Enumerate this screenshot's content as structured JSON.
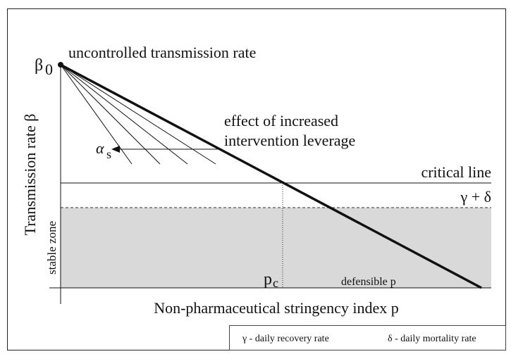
{
  "diagram": {
    "y_axis_label": "Transmission rate β",
    "x_axis_label": "Non-pharmaceutical stringency index p",
    "beta0": {
      "symbol": "β",
      "subscript": "0"
    },
    "uncontrolled": "uncontrolled transmission rate",
    "leverage": [
      "effect of increased",
      "intervention leverage"
    ],
    "alpha": {
      "symbol": "α",
      "subscript": "s"
    },
    "critical_line": "critical line",
    "gamma_delta": "γ + δ",
    "stable_zone": "stable zone",
    "pc": {
      "symbol": "p",
      "subscript": "c"
    },
    "defensible": "defensible p",
    "legend": [
      "γ - daily recovery rate",
      "δ - daily mortality rate"
    ]
  }
}
